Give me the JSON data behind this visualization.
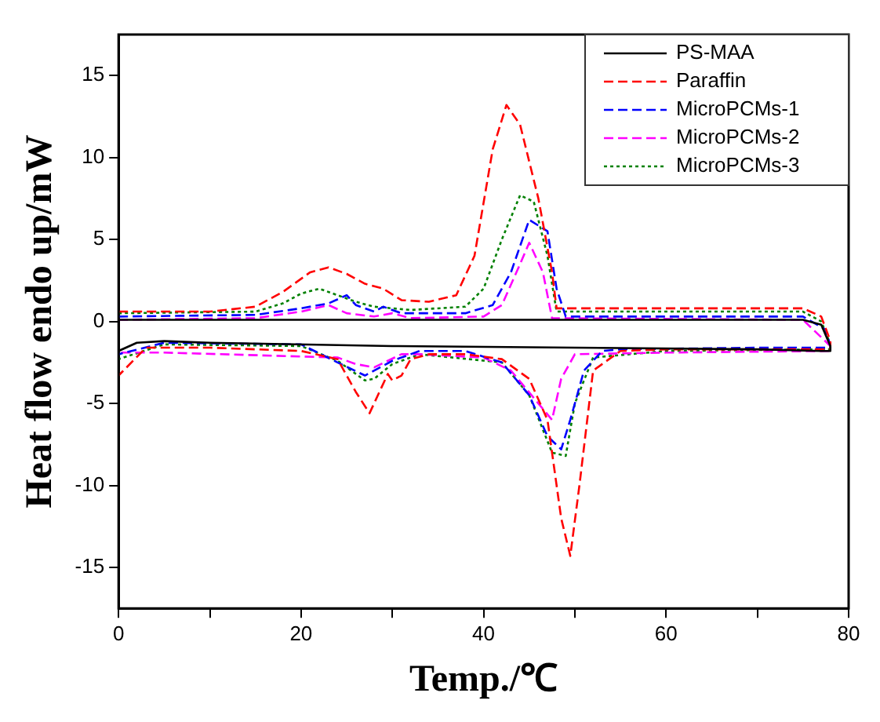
{
  "chart_data": {
    "type": "line",
    "xlabel": "Temp./℃",
    "ylabel": "Heat flow endo up/mW",
    "xlim": [
      0,
      80
    ],
    "xticks": [
      0,
      {
        "value": 10,
        "label": null
      },
      20,
      {
        "value": 30,
        "label": null
      },
      40,
      {
        "value": 50,
        "label": null
      },
      60,
      {
        "value": 70,
        "label": null
      },
      80
    ],
    "ylim": [
      -17.5,
      17.5
    ],
    "yticks": [
      -15,
      -10,
      -5,
      0,
      5,
      10,
      15
    ],
    "grid": false,
    "legend": "top right",
    "marker": "none",
    "series": [
      {
        "name": "PS-MAA",
        "color": "#000000",
        "line_style": "solid",
        "x": [
          0,
          5,
          20,
          40,
          60,
          75,
          77,
          78,
          78,
          77,
          70,
          50,
          30,
          10,
          5,
          2,
          0
        ],
        "values": [
          0.1,
          0.1,
          0.1,
          0.1,
          0.1,
          0.1,
          -0.2,
          -1.5,
          -1.8,
          -1.8,
          -1.7,
          -1.6,
          -1.5,
          -1.3,
          -1.2,
          -1.3,
          -1.8
        ]
      },
      {
        "name": "Paraffin",
        "color": "#ff0000",
        "line_style": "dashed",
        "x": [
          0,
          10,
          15,
          18,
          21,
          23,
          25,
          27,
          29,
          31,
          34,
          37,
          39,
          41,
          42.5,
          44,
          46,
          47.5,
          48,
          55,
          75,
          77,
          78,
          78,
          76,
          60,
          55,
          52,
          50.5,
          49.5,
          48.5,
          47,
          45,
          42,
          38,
          34,
          32,
          31,
          30,
          29.5,
          27.5,
          26,
          24,
          20,
          10,
          3,
          0
        ],
        "values": [
          0.6,
          0.6,
          0.9,
          1.8,
          3.0,
          3.3,
          2.9,
          2.3,
          2.0,
          1.3,
          1.2,
          1.6,
          4,
          10.5,
          13.2,
          12,
          7.5,
          3,
          0.8,
          0.8,
          0.8,
          0.3,
          -1.2,
          -1.7,
          -1.7,
          -1.7,
          -1.8,
          -3,
          -10,
          -14.3,
          -12,
          -6,
          -3.5,
          -2.3,
          -2.0,
          -2.0,
          -2.3,
          -3.3,
          -3.6,
          -3.2,
          -5.6,
          -4.3,
          -2.3,
          -1.8,
          -1.6,
          -1.6,
          -3.3
        ]
      },
      {
        "name": "MicroPCMs-1",
        "color": "#0000ff",
        "line_style": "dashed",
        "x": [
          0,
          15,
          20,
          23,
          25,
          26,
          28,
          29,
          31,
          38,
          41,
          43,
          45,
          47,
          48,
          49,
          75,
          77.5,
          78,
          78,
          70,
          55,
          53,
          51,
          49.5,
          48.5,
          47,
          45,
          42,
          38,
          33,
          30,
          27,
          24,
          20,
          5,
          0
        ],
        "values": [
          0.3,
          0.4,
          0.8,
          1.1,
          1.6,
          1.0,
          0.6,
          0.9,
          0.5,
          0.5,
          1.0,
          3,
          6.2,
          5.5,
          2,
          0.3,
          0.3,
          -0.5,
          -1.5,
          -1.6,
          -1.6,
          -1.7,
          -1.8,
          -3,
          -6,
          -7.8,
          -7,
          -4.5,
          -2.5,
          -1.8,
          -1.8,
          -2.4,
          -3.3,
          -2.5,
          -1.4,
          -1.3,
          -2.0
        ]
      },
      {
        "name": "MicroPCMs-2",
        "color": "#ff00ff",
        "line_style": "dashed",
        "x": [
          0,
          15,
          20,
          23,
          25,
          28,
          30,
          32,
          40,
          42,
          44,
          45,
          46.5,
          47.5,
          75,
          78,
          78,
          60,
          50,
          48.5,
          47.5,
          46,
          43,
          40,
          33,
          31,
          28,
          26,
          24,
          5,
          0
        ],
        "values": [
          0.1,
          0.2,
          0.6,
          1.0,
          0.5,
          0.3,
          0.5,
          0.2,
          0.3,
          1,
          3.5,
          4.8,
          3,
          0.2,
          0.1,
          -1.5,
          -1.8,
          -1.9,
          -2.0,
          -3.5,
          -6.0,
          -5,
          -3,
          -2.2,
          -2.0,
          -2.0,
          -2.8,
          -2.6,
          -2.2,
          -1.9,
          -1.9
        ]
      },
      {
        "name": "MicroPCMs-3",
        "color": "#008000",
        "line_style": "dotted",
        "x": [
          0,
          15,
          18,
          20,
          22,
          24,
          26,
          28,
          32,
          38,
          40,
          42,
          44,
          45.5,
          47,
          48,
          75,
          77,
          78,
          78,
          60,
          52,
          50,
          49,
          47.5,
          45,
          42,
          33,
          30,
          28,
          27,
          24,
          20,
          5,
          0
        ],
        "values": [
          0.5,
          0.6,
          1.1,
          1.7,
          2.0,
          1.6,
          1.2,
          0.9,
          0.7,
          0.9,
          2,
          5,
          7.7,
          7.3,
          4,
          0.6,
          0.6,
          0,
          -1.4,
          -1.7,
          -1.8,
          -2.2,
          -5,
          -8.2,
          -8,
          -4.5,
          -2.5,
          -2.0,
          -2.6,
          -3.5,
          -3.6,
          -2.4,
          -1.5,
          -1.4,
          -2.3
        ]
      }
    ]
  }
}
